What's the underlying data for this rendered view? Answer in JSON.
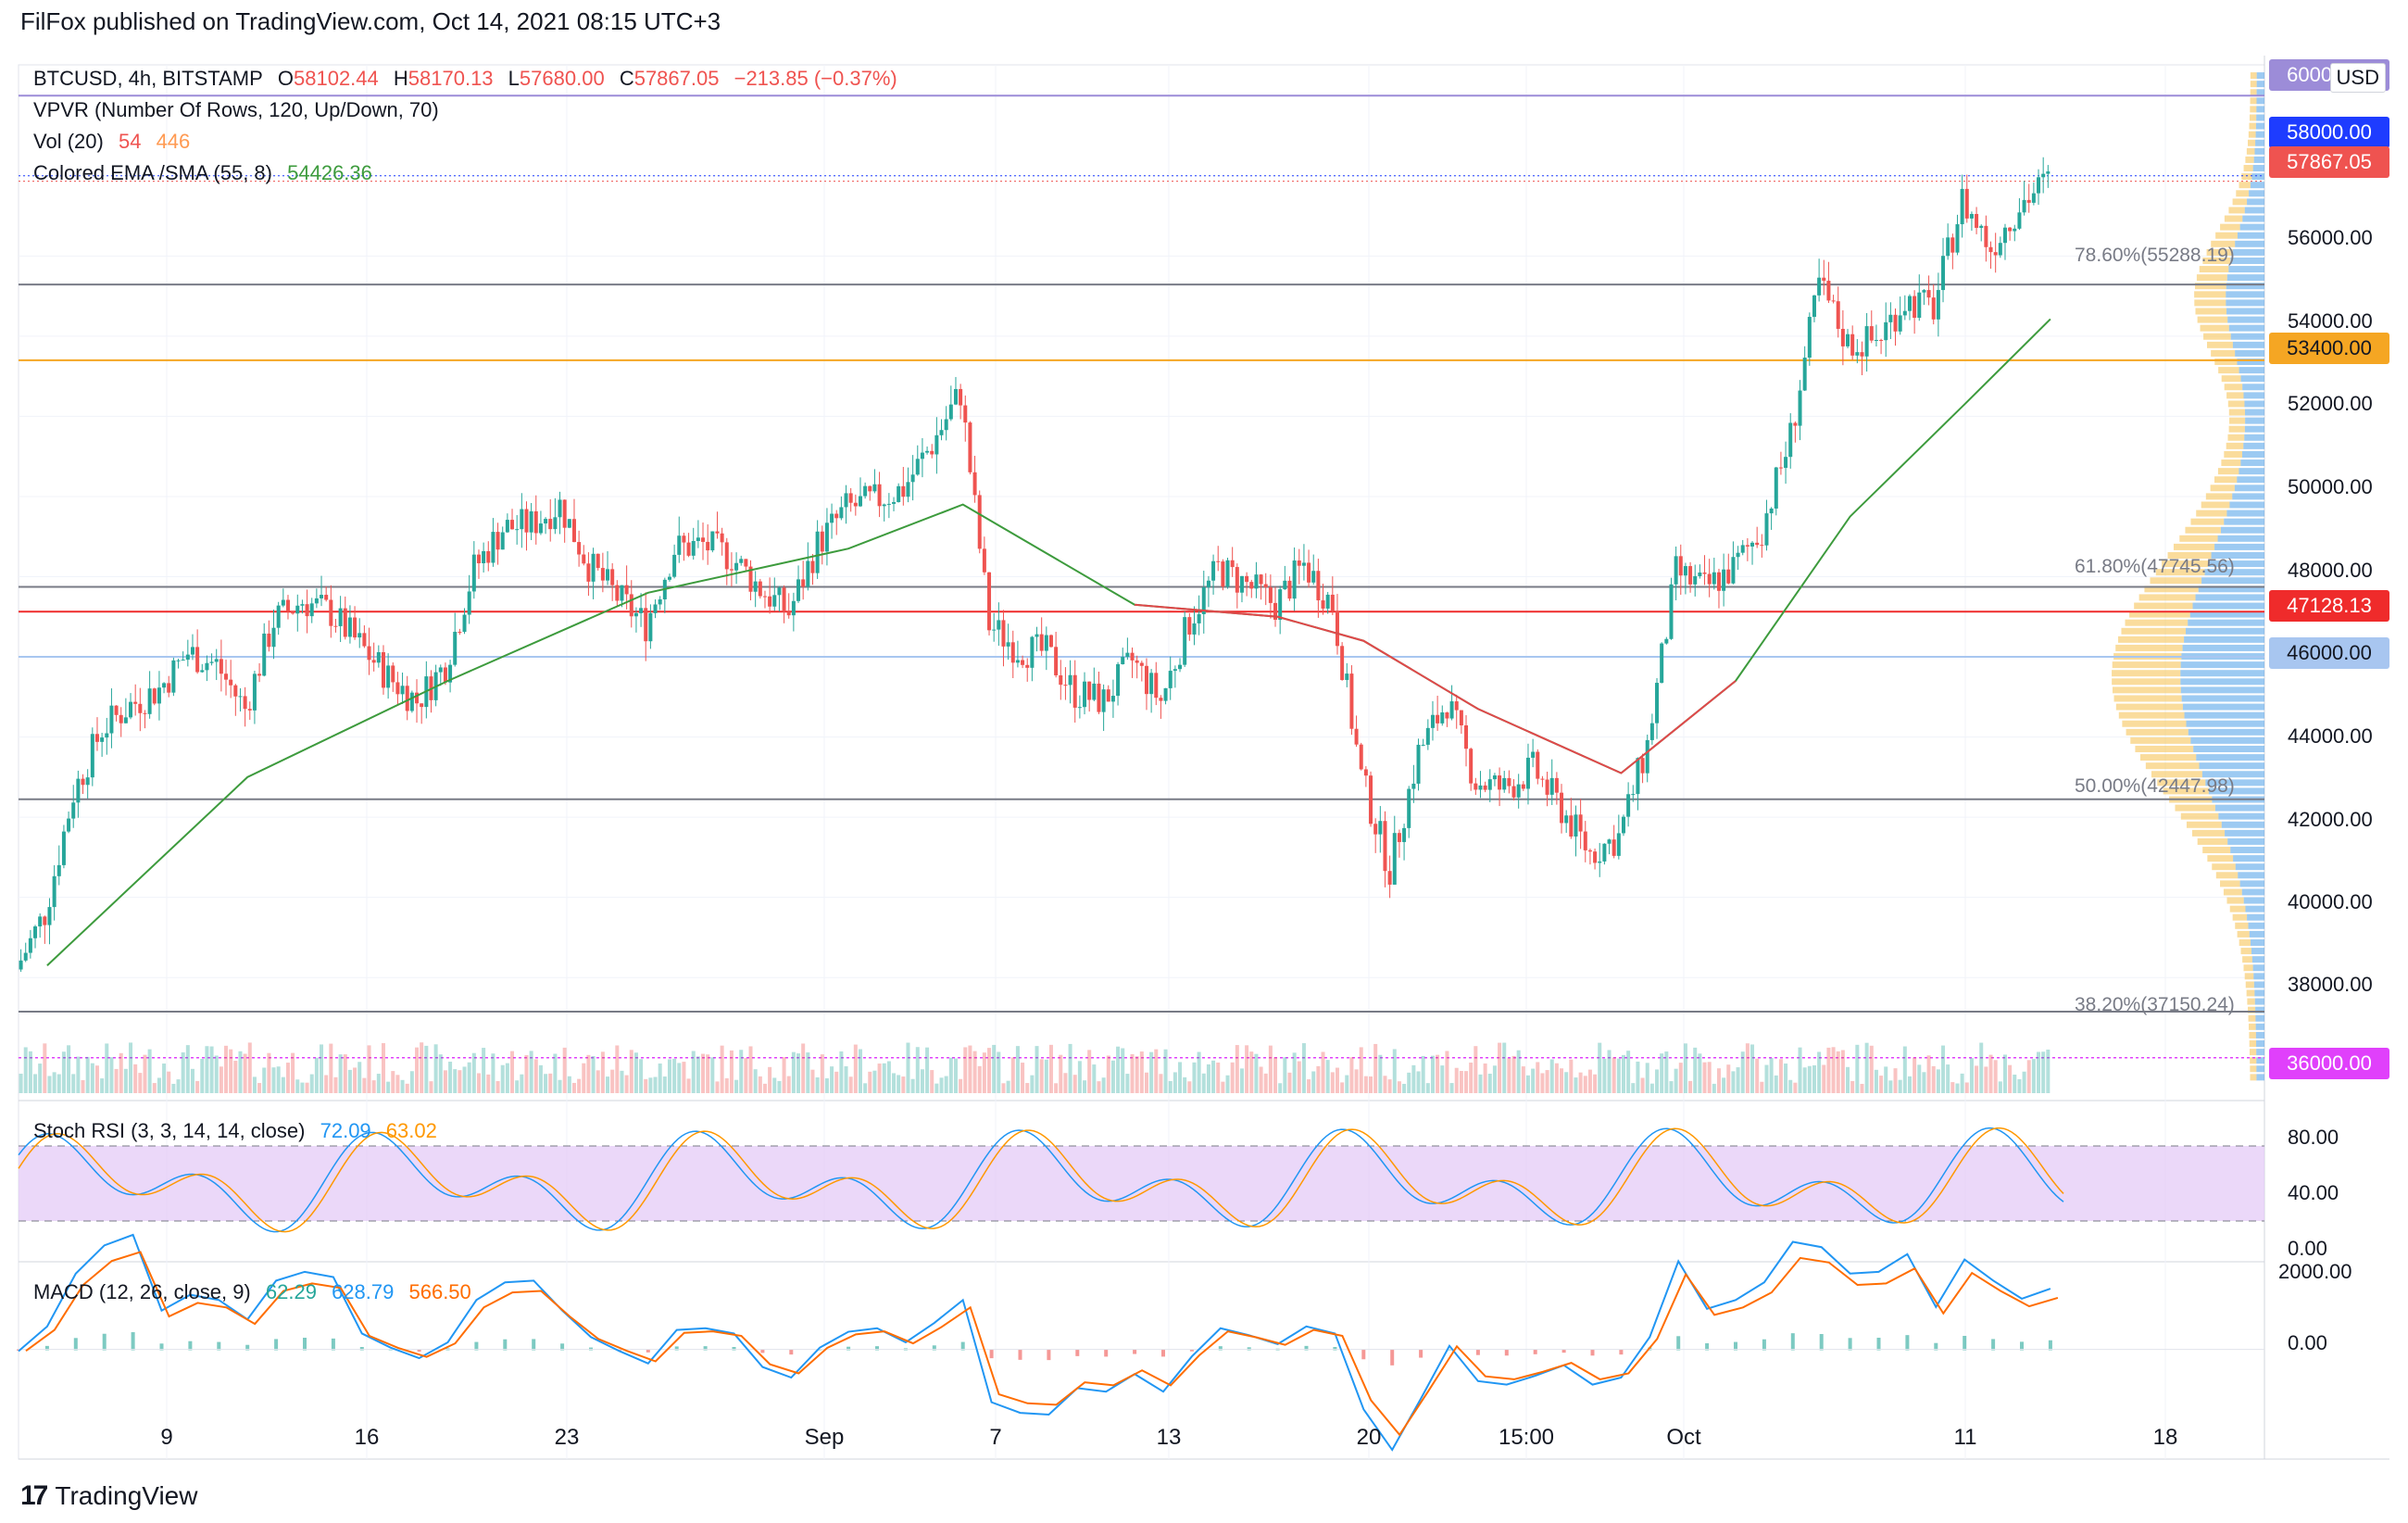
{
  "header": {
    "published": "FilFox published on TradingView.com, Oct 14, 2021 08:15 UTC+3"
  },
  "legend": {
    "symbol": "BTCUSD, 4h, BITSTAMP",
    "o_label": "O",
    "o": "58102.44",
    "h_label": "H",
    "h": "58170.13",
    "l_label": "L",
    "l": "57680.00",
    "c_label": "C",
    "c": "57867.05",
    "change": "−213.85 (−0.37%)",
    "vpvr": "VPVR (Number Of Rows, 120, Up/Down, 70)",
    "vol_name": "Vol (20)",
    "vol_a": "54",
    "vol_b": "446",
    "ema_name": "Colored EMA /SMA (55, 8)",
    "ema_val": "54426.36",
    "stoch_name": "Stoch RSI (3, 3, 14, 14, close)",
    "stoch_k": "72.09",
    "stoch_d": "63.02",
    "macd_name": "MACD (12, 26, close, 9)",
    "macd_hist": "62.29",
    "macd_line": "628.79",
    "macd_signal": "566.50"
  },
  "currency": "USD",
  "price_labels": {
    "p60000": "60000.00",
    "p58000": "58000.00",
    "p57867": "57867.05",
    "p53400": "53400.00",
    "p47128": "47128.13",
    "p46000": "46000.00",
    "p36000": "36000.00"
  },
  "price_axis": [
    "56000.00",
    "54000.00",
    "52000.00",
    "50000.00",
    "48000.00",
    "44000.00",
    "42000.00",
    "40000.00",
    "38000.00"
  ],
  "stoch_axis": [
    "80.00",
    "40.00",
    "0.00"
  ],
  "macd_axis": [
    "2000.00",
    "0.00"
  ],
  "fib_labels": [
    "78.60%(55288.19)",
    "61.80%(47745.56)",
    "50.00%(42447.98)",
    "38.20%(37150.24)"
  ],
  "x_labels": [
    "9",
    "16",
    "23",
    "Sep",
    "7",
    "13",
    "20",
    "15:00",
    "Oct",
    "11",
    "18"
  ],
  "brand": "TradingView",
  "colors": {
    "up": "#26a69a",
    "down": "#ef5350",
    "ema": "#3d9b3d",
    "sma": "#e0484b",
    "fib": "#787b86",
    "stoch_band": "#e3c8f7",
    "vp_up": "#4a9fe8",
    "vp_down": "#f5c04a"
  },
  "chart_data": {
    "type": "candlestick",
    "symbol": "BTCUSD",
    "interval": "4h",
    "ylim": [
      35000,
      61000
    ],
    "x_ticks": [
      "9",
      "16",
      "23",
      "Sep",
      "7",
      "13",
      "20",
      "15:00",
      "Oct",
      "11",
      "18"
    ],
    "close_path": [
      {
        "x": "Aug 4",
        "y": 38200
      },
      {
        "x": "Aug 5",
        "y": 39600
      },
      {
        "x": "Aug 6",
        "y": 42600
      },
      {
        "x": "Aug 7",
        "y": 44200
      },
      {
        "x": "Aug 8",
        "y": 44800
      },
      {
        "x": "Aug 9",
        "y": 45200
      },
      {
        "x": "Aug 10",
        "y": 46100
      },
      {
        "x": "Aug 11",
        "y": 45800
      },
      {
        "x": "Aug 12",
        "y": 44700
      },
      {
        "x": "Aug 13",
        "y": 46900
      },
      {
        "x": "Aug 14",
        "y": 47400
      },
      {
        "x": "Aug 15",
        "y": 47100
      },
      {
        "x": "Aug 16",
        "y": 46300
      },
      {
        "x": "Aug 17",
        "y": 45500
      },
      {
        "x": "Aug 18",
        "y": 44900
      },
      {
        "x": "Aug 19",
        "y": 45800
      },
      {
        "x": "Aug 20",
        "y": 48200
      },
      {
        "x": "Aug 21",
        "y": 49200
      },
      {
        "x": "Aug 22",
        "y": 49300
      },
      {
        "x": "Aug 23",
        "y": 49800
      },
      {
        "x": "Aug 24",
        "y": 48300
      },
      {
        "x": "Aug 25",
        "y": 47500
      },
      {
        "x": "Aug 26",
        "y": 46800
      },
      {
        "x": "Aug 27",
        "y": 48700
      },
      {
        "x": "Aug 28",
        "y": 48800
      },
      {
        "x": "Aug 29",
        "y": 48500
      },
      {
        "x": "Aug 30",
        "y": 47700
      },
      {
        "x": "Aug 31",
        "y": 47100
      },
      {
        "x": "Sep 1",
        "y": 48800
      },
      {
        "x": "Sep 2",
        "y": 49700
      },
      {
        "x": "Sep 3",
        "y": 49900
      },
      {
        "x": "Sep 4",
        "y": 50200
      },
      {
        "x": "Sep 5",
        "y": 51300
      },
      {
        "x": "Sep 6",
        "y": 52600
      },
      {
        "x": "Sep 7",
        "y": 46800
      },
      {
        "x": "Sep 8",
        "y": 46200
      },
      {
        "x": "Sep 9",
        "y": 46100
      },
      {
        "x": "Sep 10",
        "y": 45100
      },
      {
        "x": "Sep 11",
        "y": 44900
      },
      {
        "x": "Sep 12",
        "y": 45900
      },
      {
        "x": "Sep 13",
        "y": 44900
      },
      {
        "x": "Sep 14",
        "y": 46900
      },
      {
        "x": "Sep 15",
        "y": 48200
      },
      {
        "x": "Sep 16",
        "y": 47800
      },
      {
        "x": "Sep 17",
        "y": 47300
      },
      {
        "x": "Sep 18",
        "y": 48300
      },
      {
        "x": "Sep 19",
        "y": 47300
      },
      {
        "x": "Sep 20",
        "y": 43000
      },
      {
        "x": "Sep 21",
        "y": 40700
      },
      {
        "x": "Sep 22",
        "y": 43600
      },
      {
        "x": "Sep 23",
        "y": 44900
      },
      {
        "x": "Sep 24",
        "y": 42900
      },
      {
        "x": "Sep 25",
        "y": 42700
      },
      {
        "x": "Sep 26",
        "y": 43200
      },
      {
        "x": "Sep 27",
        "y": 42200
      },
      {
        "x": "Sep 28",
        "y": 41100
      },
      {
        "x": "Sep 29",
        "y": 41500
      },
      {
        "x": "Sep 30",
        "y": 43800
      },
      {
        "x": "Oct 1",
        "y": 48100
      },
      {
        "x": "Oct 2",
        "y": 47700
      },
      {
        "x": "Oct 3",
        "y": 48200
      },
      {
        "x": "Oct 4",
        "y": 49200
      },
      {
        "x": "Oct 5",
        "y": 51500
      },
      {
        "x": "Oct 6",
        "y": 55300
      },
      {
        "x": "Oct 7",
        "y": 53800
      },
      {
        "x": "Oct 8",
        "y": 53900
      },
      {
        "x": "Oct 9",
        "y": 54900
      },
      {
        "x": "Oct 10",
        "y": 54700
      },
      {
        "x": "Oct 11",
        "y": 57400
      },
      {
        "x": "Oct 12",
        "y": 56200
      },
      {
        "x": "Oct 13",
        "y": 57300
      },
      {
        "x": "Oct 14",
        "y": 57867
      }
    ],
    "ema_sma": [
      {
        "x": "Aug 5",
        "y": 38300
      },
      {
        "x": "Aug 12",
        "y": 43000
      },
      {
        "x": "Aug 19",
        "y": 45400
      },
      {
        "x": "Aug 26",
        "y": 47600
      },
      {
        "x": "Sep 2",
        "y": 48700
      },
      {
        "x": "Sep 6",
        "y": 49800
      },
      {
        "x": "Sep 12",
        "y": 47300
      },
      {
        "x": "Sep 17",
        "y": 47000
      },
      {
        "x": "Sep 20",
        "y": 46400
      },
      {
        "x": "Sep 24",
        "y": 44700
      },
      {
        "x": "Sep 29",
        "y": 43100
      },
      {
        "x": "Oct 3",
        "y": 45400
      },
      {
        "x": "Oct 7",
        "y": 49500
      },
      {
        "x": "Oct 11",
        "y": 52300
      },
      {
        "x": "Oct 14",
        "y": 54426
      }
    ],
    "horizontal_lines": [
      {
        "label": "78.60%(55288.19)",
        "y": 55288.19
      },
      {
        "label": "61.80%(47745.56)",
        "y": 47745.56
      },
      {
        "label": "50.00%(42447.98)",
        "y": 42447.98
      },
      {
        "label": "38.20%(37150.24)",
        "y": 37150.24
      },
      {
        "label": "53400.00",
        "y": 53400
      },
      {
        "label": "47128.13",
        "y": 47128.13
      },
      {
        "label": "46000.00",
        "y": 46000
      },
      {
        "label": "60000.00",
        "y": 60000
      },
      {
        "label": "36000.00",
        "y": 36000
      }
    ],
    "stoch_rsi": {
      "k": 72.09,
      "d": 63.02,
      "levels": [
        80,
        20
      ],
      "ylim": [
        0,
        100
      ]
    },
    "macd": {
      "hist": 62.29,
      "macd": 628.79,
      "signal": 566.5,
      "ylim": [
        -1500,
        2000
      ]
    }
  }
}
